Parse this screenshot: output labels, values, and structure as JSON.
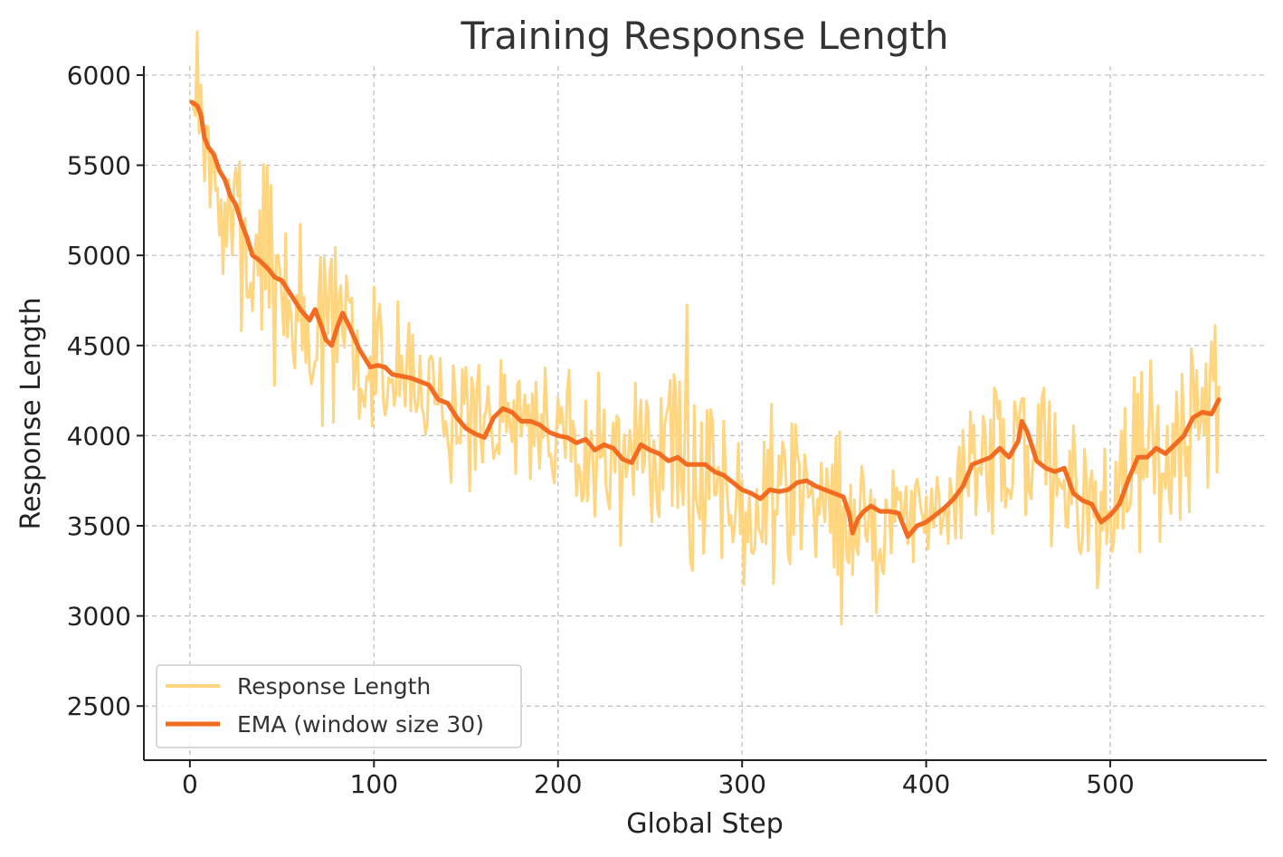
{
  "chart_data": {
    "type": "line",
    "title": "Training Response Length",
    "xlabel": "Global Step",
    "ylabel": "Response Length",
    "xlim": [
      -25,
      585
    ],
    "ylim": [
      2200,
      6050
    ],
    "xticks": [
      0,
      100,
      200,
      300,
      400,
      500
    ],
    "yticks": [
      2500,
      3000,
      3500,
      4000,
      4500,
      5000,
      5500,
      6000
    ],
    "grid": true,
    "legend_position": "lower-left",
    "series": [
      {
        "name": "Response Length",
        "color": "#ffd580",
        "noise_seed": 7,
        "x": [
          1,
          5,
          10,
          15,
          20,
          25,
          30,
          35,
          40,
          45,
          50,
          55,
          60,
          65,
          70,
          75,
          80,
          83,
          90,
          95,
          100,
          110,
          120,
          130,
          140,
          150,
          160,
          170,
          180,
          190,
          200,
          210,
          220,
          230,
          240,
          250,
          260,
          270,
          280,
          290,
          300,
          310,
          320,
          330,
          340,
          350,
          355,
          360,
          370,
          380,
          390,
          400,
          410,
          420,
          430,
          440,
          450,
          460,
          470,
          480,
          490,
          500,
          510,
          520,
          530,
          540,
          550,
          559
        ],
        "values": [
          5850,
          5700,
          5450,
          5300,
          5200,
          5100,
          5000,
          4950,
          4920,
          4880,
          4850,
          4750,
          4650,
          4580,
          4620,
          4500,
          4600,
          4650,
          4500,
          4420,
          4380,
          4370,
          4320,
          4250,
          4120,
          4050,
          4020,
          4150,
          4100,
          4050,
          4000,
          3980,
          3920,
          3850,
          3930,
          3900,
          3860,
          3840,
          3820,
          3790,
          3700,
          3650,
          3680,
          3720,
          3680,
          3640,
          3600,
          3480,
          3560,
          3580,
          3500,
          3550,
          3620,
          3750,
          3880,
          3900,
          3980,
          3900,
          3820,
          3700,
          3580,
          3580,
          3820,
          3950,
          3900,
          4050,
          4120,
          4180
        ]
      },
      {
        "name": "EMA (window size 30)",
        "color": "#f26b21",
        "x": [
          1,
          4,
          6,
          8,
          10,
          13,
          16,
          19,
          22,
          25,
          28,
          31,
          34,
          37,
          40,
          43,
          46,
          50,
          55,
          60,
          65,
          68,
          71,
          74,
          77,
          80,
          83,
          86,
          89,
          92,
          95,
          98,
          102,
          106,
          110,
          115,
          120,
          125,
          130,
          135,
          140,
          145,
          150,
          155,
          160,
          165,
          170,
          175,
          180,
          185,
          190,
          195,
          200,
          205,
          210,
          215,
          220,
          225,
          230,
          235,
          240,
          245,
          250,
          255,
          260,
          265,
          270,
          275,
          280,
          285,
          290,
          295,
          300,
          305,
          310,
          315,
          320,
          325,
          330,
          335,
          340,
          345,
          350,
          355,
          358,
          360,
          363,
          366,
          370,
          375,
          380,
          385,
          390,
          395,
          400,
          405,
          410,
          415,
          420,
          425,
          430,
          435,
          440,
          445,
          450,
          452,
          455,
          460,
          465,
          470,
          475,
          480,
          485,
          490,
          495,
          500,
          505,
          510,
          515,
          520,
          525,
          530,
          535,
          540,
          545,
          550,
          555,
          559
        ],
        "values": [
          5850,
          5830,
          5780,
          5650,
          5600,
          5560,
          5470,
          5420,
          5330,
          5280,
          5180,
          5100,
          5000,
          4980,
          4950,
          4920,
          4880,
          4860,
          4780,
          4700,
          4640,
          4700,
          4620,
          4530,
          4500,
          4600,
          4680,
          4620,
          4550,
          4480,
          4430,
          4380,
          4390,
          4380,
          4340,
          4330,
          4320,
          4300,
          4280,
          4200,
          4180,
          4100,
          4040,
          4010,
          3990,
          4100,
          4150,
          4130,
          4080,
          4080,
          4060,
          4020,
          4000,
          3990,
          3960,
          3980,
          3920,
          3950,
          3930,
          3870,
          3850,
          3950,
          3920,
          3900,
          3860,
          3880,
          3840,
          3840,
          3840,
          3800,
          3780,
          3740,
          3700,
          3680,
          3650,
          3700,
          3690,
          3700,
          3740,
          3750,
          3720,
          3700,
          3680,
          3660,
          3570,
          3460,
          3540,
          3580,
          3610,
          3580,
          3580,
          3570,
          3440,
          3500,
          3520,
          3560,
          3600,
          3650,
          3720,
          3840,
          3860,
          3880,
          3930,
          3880,
          3970,
          4080,
          4020,
          3860,
          3820,
          3800,
          3820,
          3680,
          3640,
          3620,
          3520,
          3560,
          3620,
          3760,
          3880,
          3880,
          3930,
          3900,
          3950,
          4000,
          4100,
          4130,
          4120,
          4200
        ]
      }
    ]
  }
}
